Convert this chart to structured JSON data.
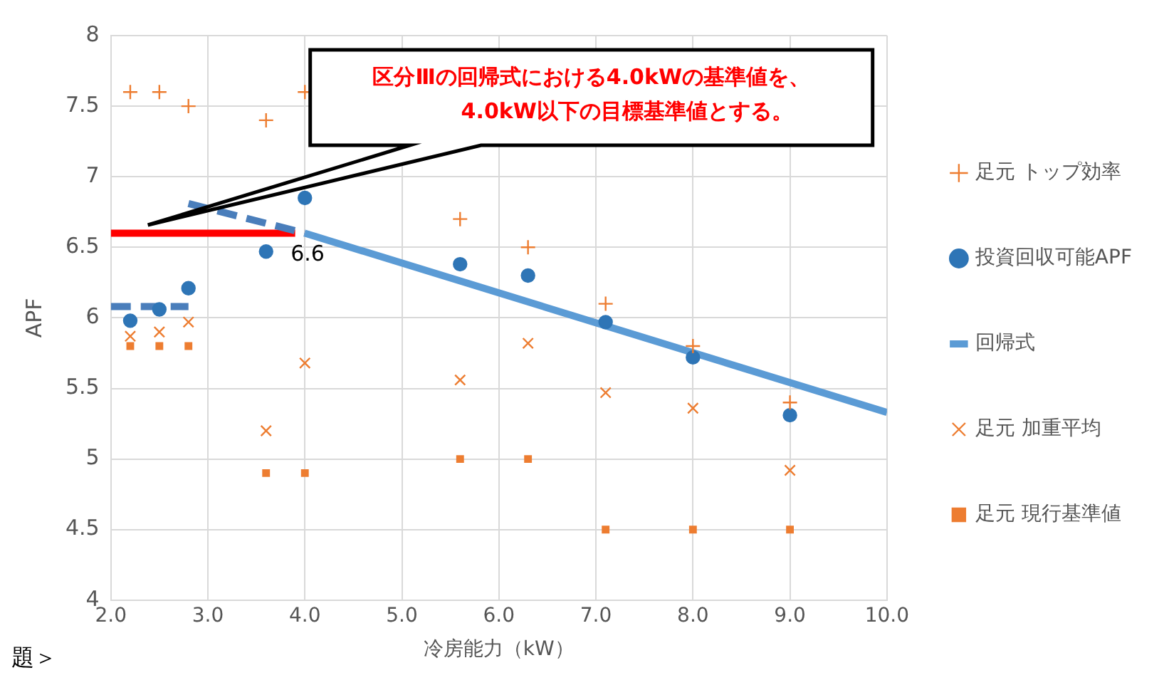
{
  "chart_data": {
    "type": "scatter",
    "xlabel": "冷房能力（kW）",
    "ylabel": "APF",
    "xlim": [
      2.0,
      10.0
    ],
    "xticks": [
      {
        "value": 2,
        "label": "2.0"
      },
      {
        "value": 3,
        "label": "3.0"
      },
      {
        "value": 4,
        "label": "4.0"
      },
      {
        "value": 5,
        "label": "5.0"
      },
      {
        "value": 6,
        "label": "6.0"
      },
      {
        "value": 7,
        "label": "7.0"
      },
      {
        "value": 8,
        "label": "8.0"
      },
      {
        "value": 9,
        "label": "9.0"
      },
      {
        "value": 10,
        "label": "10.0"
      }
    ],
    "ylim": [
      4,
      8
    ],
    "yticks": [
      4,
      4.5,
      5,
      5.5,
      6,
      6.5,
      7,
      7.5,
      8
    ],
    "grid": true,
    "legend": "right",
    "series": [
      {
        "name": "足元 トップ効率",
        "type": "scatter",
        "marker": "plus",
        "color": "#ed7d31",
        "x": [
          2.2,
          2.5,
          2.8,
          3.6,
          4.0,
          5.6,
          6.3,
          7.1,
          8.0,
          9.0
        ],
        "values": [
          7.6,
          7.6,
          7.5,
          7.4,
          7.6,
          6.7,
          6.5,
          6.1,
          5.8,
          5.4
        ]
      },
      {
        "name": "投資回収可能APF",
        "type": "scatter",
        "marker": "circle",
        "color": "#2e75b6",
        "x": [
          2.2,
          2.5,
          2.8,
          3.6,
          4.0,
          5.6,
          6.3,
          7.1,
          8.0,
          9.0
        ],
        "values": [
          5.98,
          6.06,
          6.21,
          6.47,
          6.85,
          6.38,
          6.3,
          5.97,
          5.72,
          5.31
        ]
      },
      {
        "name": "回帰式",
        "type": "line",
        "marker": "none",
        "line_style": "solid",
        "color": "#5b9bd5",
        "x": [
          4.0,
          10.0
        ],
        "values": [
          6.6,
          5.33
        ]
      },
      {
        "name": "足元 加重平均",
        "type": "scatter",
        "marker": "cross",
        "color": "#ed7d31",
        "x": [
          2.2,
          2.5,
          2.8,
          3.6,
          4.0,
          5.6,
          6.3,
          7.1,
          8.0,
          9.0
        ],
        "values": [
          5.87,
          5.9,
          5.97,
          5.2,
          5.68,
          5.56,
          5.82,
          5.47,
          5.36,
          4.92
        ]
      },
      {
        "name": "足元 現行基準値",
        "type": "scatter",
        "marker": "square",
        "color": "#ed7d31",
        "x": [
          2.2,
          2.5,
          2.8,
          3.6,
          4.0,
          5.6,
          6.3,
          7.1,
          8.0,
          9.0
        ],
        "values": [
          5.8,
          5.8,
          5.8,
          4.9,
          4.9,
          5.0,
          5.0,
          4.5,
          4.5,
          4.5
        ]
      },
      {
        "type": "line",
        "marker": "none",
        "line_style": "dashed",
        "color": "#4a7ebb",
        "x": [
          2.8,
          4.0
        ],
        "values": [
          6.81,
          6.6
        ]
      },
      {
        "type": "line",
        "marker": "none",
        "line_style": "dashed",
        "color": "#4a7ebb",
        "x": [
          2.0,
          2.8
        ],
        "values": [
          6.08,
          6.08
        ]
      },
      {
        "type": "line",
        "marker": "none",
        "line_style": "solid",
        "color": "#ff0000",
        "x": [
          2.0,
          3.9
        ],
        "values": [
          6.6,
          6.6
        ]
      }
    ],
    "annotations": [
      "区分Ⅲの回帰式における4.0kWの基準値を、\n4.0kW以下の目標基準値とする。",
      {
        "text": "6.6",
        "x": 4.0,
        "y": 6.6
      },
      "題＞"
    ]
  }
}
